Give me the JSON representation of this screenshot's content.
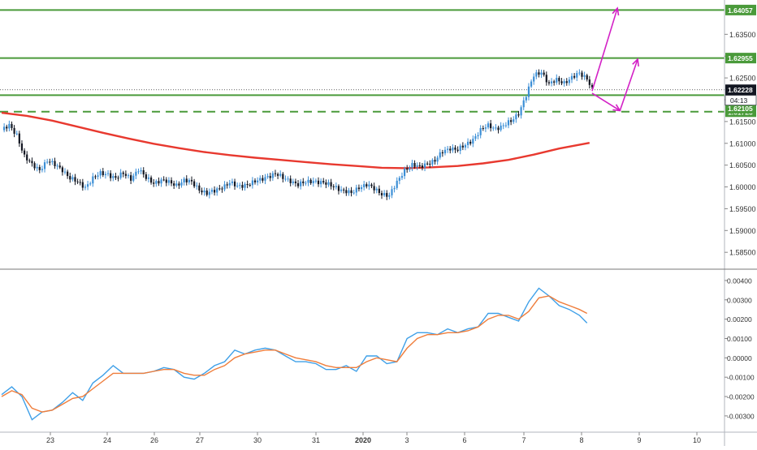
{
  "colors": {
    "bull_candle": "#3c8fd6",
    "bear_candle": "#131722",
    "moving_average": "#e8392f",
    "green_level": "#4a9a3a",
    "arrow": "#d321c6",
    "macd_line": "#3fa0e8",
    "signal_line": "#ef7d3b",
    "price_tag_dark": "#131722",
    "axis_text": "#333333",
    "panel_divider": "#777777"
  },
  "chart_data": [
    {
      "type": "candlestick",
      "panel": "price",
      "ylim": [
        1.5815,
        1.6425
      ],
      "y_ticks": [
        "1.58500",
        "1.59000",
        "1.59500",
        "1.60000",
        "1.60500",
        "1.61000",
        "1.61500",
        "1.62000",
        "1.62500",
        "1.63000",
        "1.63500"
      ],
      "x_ticks": [
        "23",
        "24",
        "26",
        "27",
        "30",
        "31",
        "2020",
        "3",
        "6",
        "7",
        "8",
        "9",
        "10"
      ],
      "close_path": [
        [
          0,
          1.613
        ],
        [
          3,
          1.614
        ],
        [
          6,
          1.612
        ],
        [
          9,
          1.607
        ],
        [
          12,
          1.605
        ],
        [
          15,
          1.604
        ],
        [
          18,
          1.606
        ],
        [
          21,
          1.605
        ],
        [
          24,
          1.604
        ],
        [
          27,
          1.602
        ],
        [
          30,
          1.601
        ],
        [
          33,
          1.6
        ],
        [
          36,
          1.602
        ],
        [
          39,
          1.603
        ],
        [
          42,
          1.603
        ],
        [
          45,
          1.602
        ],
        [
          48,
          1.603
        ],
        [
          51,
          1.602
        ],
        [
          54,
          1.604
        ],
        [
          57,
          1.602
        ],
        [
          60,
          1.601
        ],
        [
          63,
          1.6015
        ],
        [
          66,
          1.601
        ],
        [
          69,
          1.6005
        ],
        [
          72,
          1.6015
        ],
        [
          75,
          1.601
        ],
        [
          78,
          1.5995
        ],
        [
          81,
          1.5985
        ],
        [
          84,
          1.599
        ],
        [
          87,
          1.6
        ],
        [
          90,
          1.601
        ],
        [
          93,
          1.6
        ],
        [
          96,
          1.6005
        ],
        [
          99,
          1.601
        ],
        [
          102,
          1.6015
        ],
        [
          105,
          1.6025
        ],
        [
          108,
          1.603
        ],
        [
          111,
          1.602
        ],
        [
          114,
          1.6015
        ],
        [
          117,
          1.6005
        ],
        [
          120,
          1.601
        ],
        [
          123,
          1.6015
        ],
        [
          126,
          1.601
        ],
        [
          129,
          1.6005
        ],
        [
          132,
          1.6
        ],
        [
          135,
          1.599
        ],
        [
          138,
          1.5985
        ],
        [
          141,
          1.6
        ],
        [
          144,
          1.6005
        ],
        [
          147,
          1.5995
        ],
        [
          150,
          1.5985
        ],
        [
          153,
          1.598
        ],
        [
          156,
          1.601
        ],
        [
          159,
          1.604
        ],
        [
          162,
          1.605
        ],
        [
          165,
          1.6045
        ],
        [
          168,
          1.6055
        ],
        [
          171,
          1.606
        ],
        [
          174,
          1.608
        ],
        [
          177,
          1.609
        ],
        [
          180,
          1.6085
        ],
        [
          183,
          1.6095
        ],
        [
          186,
          1.611
        ],
        [
          189,
          1.613
        ],
        [
          192,
          1.614
        ],
        [
          195,
          1.6135
        ],
        [
          198,
          1.614
        ],
        [
          201,
          1.615
        ],
        [
          204,
          1.617
        ],
        [
          207,
          1.621
        ],
        [
          210,
          1.6255
        ],
        [
          213,
          1.6265
        ],
        [
          216,
          1.6235
        ],
        [
          219,
          1.6245
        ],
        [
          222,
          1.624
        ],
        [
          225,
          1.625
        ],
        [
          228,
          1.626
        ],
        [
          231,
          1.625
        ],
        [
          233,
          1.6225
        ]
      ],
      "moving_average": [
        [
          0,
          1.617
        ],
        [
          10,
          1.6163
        ],
        [
          20,
          1.6152
        ],
        [
          30,
          1.6138
        ],
        [
          40,
          1.6124
        ],
        [
          50,
          1.6111
        ],
        [
          60,
          1.6099
        ],
        [
          70,
          1.6089
        ],
        [
          80,
          1.608
        ],
        [
          90,
          1.6073
        ],
        [
          100,
          1.6067
        ],
        [
          110,
          1.6062
        ],
        [
          120,
          1.6057
        ],
        [
          130,
          1.6052
        ],
        [
          140,
          1.6048
        ],
        [
          150,
          1.6044
        ],
        [
          160,
          1.6043
        ],
        [
          170,
          1.6045
        ],
        [
          180,
          1.6048
        ],
        [
          190,
          1.6054
        ],
        [
          200,
          1.6062
        ],
        [
          210,
          1.6074
        ],
        [
          220,
          1.6088
        ],
        [
          232,
          1.6101
        ]
      ],
      "levels": [
        {
          "price": 1.64057,
          "style": "solid",
          "label": "1.64057"
        },
        {
          "price": 1.62955,
          "style": "solid",
          "label": "1.62955"
        },
        {
          "price": 1.62105,
          "style": "solid",
          "label": "1.62105"
        },
        {
          "price": 1.61725,
          "style": "dashed",
          "label": "1.61725"
        }
      ],
      "current_price": {
        "value": "1.62228",
        "countdown": "04:13"
      },
      "arrows": [
        {
          "from": [
            233,
            1.622
          ],
          "to": [
            243,
            1.641
          ]
        },
        {
          "from": [
            233,
            1.6215
          ],
          "to": [
            244,
            1.6175
          ]
        },
        {
          "from": [
            244,
            1.6175
          ],
          "to": [
            251,
            1.6293
          ]
        }
      ]
    },
    {
      "type": "line",
      "panel": "oscillator",
      "ylim": [
        -0.0038,
        0.0045
      ],
      "y_ticks": [
        "-0.00300",
        "-0.00200",
        "-0.00100",
        "0.00000",
        "0.00100",
        "0.00200",
        "0.00300",
        "0.00400"
      ],
      "series": [
        {
          "role": "macd",
          "points": [
            [
              0,
              -0.0019
            ],
            [
              4,
              -0.0015
            ],
            [
              8,
              -0.002
            ],
            [
              12,
              -0.0032
            ],
            [
              16,
              -0.0028
            ],
            [
              20,
              -0.0027
            ],
            [
              24,
              -0.0023
            ],
            [
              28,
              -0.0018
            ],
            [
              32,
              -0.0022
            ],
            [
              36,
              -0.0013
            ],
            [
              40,
              -0.0009
            ],
            [
              44,
              -0.0004
            ],
            [
              48,
              -0.0008
            ],
            [
              52,
              -0.0008
            ],
            [
              56,
              -0.0008
            ],
            [
              60,
              -0.0007
            ],
            [
              64,
              -0.0005
            ],
            [
              68,
              -0.0006
            ],
            [
              72,
              -0.001
            ],
            [
              76,
              -0.0011
            ],
            [
              80,
              -0.0008
            ],
            [
              84,
              -0.0004
            ],
            [
              88,
              -0.0002
            ],
            [
              92,
              0.0004
            ],
            [
              96,
              0.0002
            ],
            [
              100,
              0.0004
            ],
            [
              104,
              0.0005
            ],
            [
              108,
              0.0004
            ],
            [
              112,
              0.0001
            ],
            [
              116,
              -0.0002
            ],
            [
              120,
              -0.0002
            ],
            [
              124,
              -0.0003
            ],
            [
              128,
              -0.0006
            ],
            [
              132,
              -0.0006
            ],
            [
              136,
              -0.0004
            ],
            [
              140,
              -0.0007
            ],
            [
              144,
              0.0001
            ],
            [
              148,
              0.0001
            ],
            [
              152,
              -0.0003
            ],
            [
              156,
              -0.0002
            ],
            [
              160,
              0.001
            ],
            [
              164,
              0.0013
            ],
            [
              168,
              0.0013
            ],
            [
              172,
              0.0012
            ],
            [
              176,
              0.0015
            ],
            [
              180,
              0.0013
            ],
            [
              184,
              0.0015
            ],
            [
              188,
              0.0016
            ],
            [
              192,
              0.0023
            ],
            [
              196,
              0.0023
            ],
            [
              200,
              0.0021
            ],
            [
              204,
              0.0019
            ],
            [
              208,
              0.0029
            ],
            [
              212,
              0.0036
            ],
            [
              216,
              0.0032
            ],
            [
              220,
              0.0027
            ],
            [
              224,
              0.0025
            ],
            [
              228,
              0.0022
            ],
            [
              231,
              0.0018
            ]
          ]
        },
        {
          "role": "signal",
          "points": [
            [
              0,
              -0.002
            ],
            [
              4,
              -0.0017
            ],
            [
              8,
              -0.0019
            ],
            [
              12,
              -0.0026
            ],
            [
              16,
              -0.0028
            ],
            [
              20,
              -0.0027
            ],
            [
              24,
              -0.0024
            ],
            [
              28,
              -0.0021
            ],
            [
              32,
              -0.002
            ],
            [
              36,
              -0.0016
            ],
            [
              40,
              -0.0012
            ],
            [
              44,
              -0.0008
            ],
            [
              48,
              -0.0008
            ],
            [
              52,
              -0.0008
            ],
            [
              56,
              -0.0008
            ],
            [
              60,
              -0.0007
            ],
            [
              64,
              -0.0006
            ],
            [
              68,
              -0.0006
            ],
            [
              72,
              -0.0008
            ],
            [
              76,
              -0.0009
            ],
            [
              80,
              -0.0009
            ],
            [
              84,
              -0.0006
            ],
            [
              88,
              -0.0004
            ],
            [
              92,
              0.0
            ],
            [
              96,
              0.0002
            ],
            [
              100,
              0.0003
            ],
            [
              104,
              0.0004
            ],
            [
              108,
              0.0004
            ],
            [
              112,
              0.0002
            ],
            [
              116,
              0.0
            ],
            [
              120,
              -0.0001
            ],
            [
              124,
              -0.0002
            ],
            [
              128,
              -0.0004
            ],
            [
              132,
              -0.0005
            ],
            [
              136,
              -0.0005
            ],
            [
              140,
              -0.0005
            ],
            [
              144,
              -0.0002
            ],
            [
              148,
              0.0
            ],
            [
              152,
              -0.0001
            ],
            [
              156,
              -0.0002
            ],
            [
              160,
              0.0005
            ],
            [
              164,
              0.001
            ],
            [
              168,
              0.0012
            ],
            [
              172,
              0.0012
            ],
            [
              176,
              0.0013
            ],
            [
              180,
              0.0013
            ],
            [
              184,
              0.0014
            ],
            [
              188,
              0.0016
            ],
            [
              192,
              0.002
            ],
            [
              196,
              0.0022
            ],
            [
              200,
              0.0022
            ],
            [
              204,
              0.002
            ],
            [
              208,
              0.0024
            ],
            [
              212,
              0.0031
            ],
            [
              216,
              0.0032
            ],
            [
              220,
              0.0029
            ],
            [
              224,
              0.0027
            ],
            [
              228,
              0.0025
            ],
            [
              231,
              0.0023
            ]
          ]
        }
      ]
    }
  ]
}
